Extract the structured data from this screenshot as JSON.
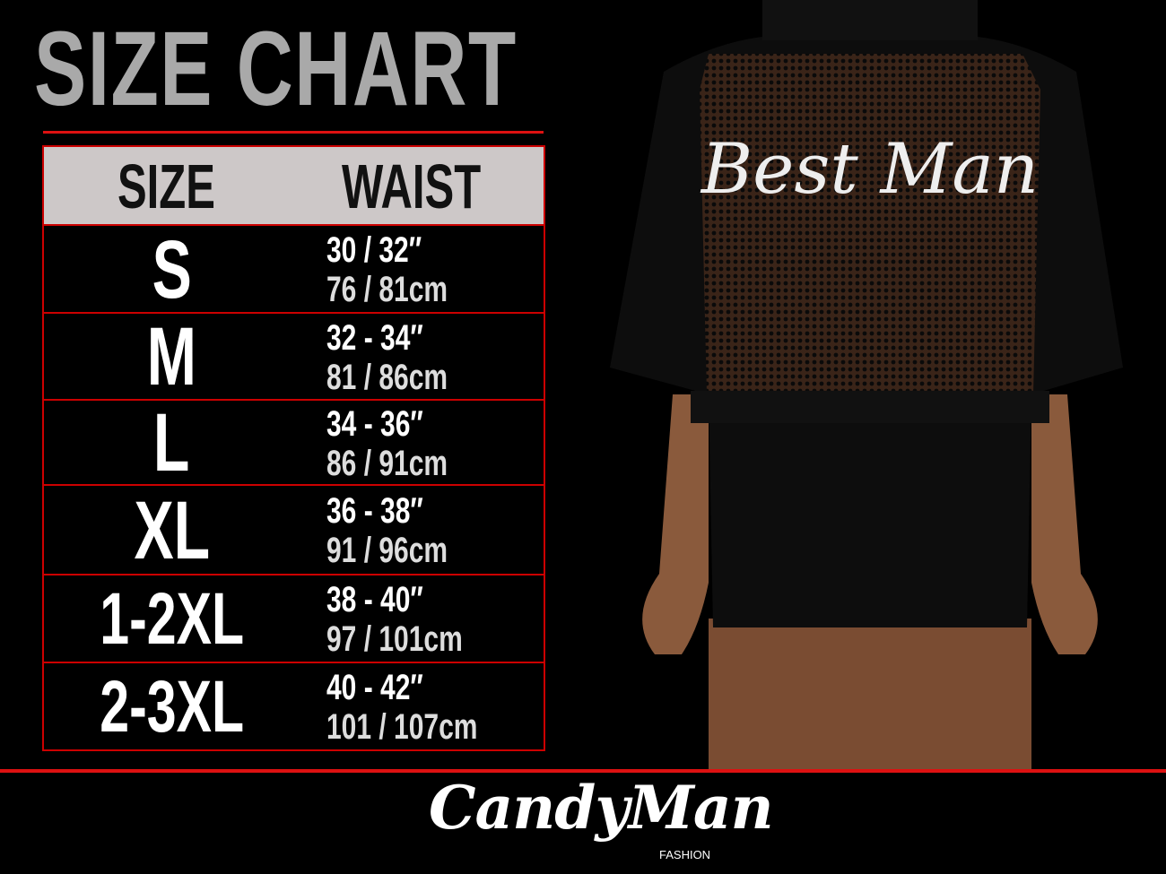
{
  "title": "SIZE CHART",
  "table": {
    "headers": [
      "SIZE",
      "WAIST"
    ],
    "rows": [
      {
        "size": "S",
        "inches": "30 / 32″",
        "cm": "76 / 81cm"
      },
      {
        "size": "M",
        "inches": "32 - 34″",
        "cm": "81 / 86cm"
      },
      {
        "size": "L",
        "inches": "34 - 36″",
        "cm": "86 / 91cm"
      },
      {
        "size": "XL",
        "inches": "36 - 38″",
        "cm": "91 / 96cm"
      },
      {
        "size": "1-2XL",
        "inches": "38 - 40″",
        "cm": "97 / 101cm"
      },
      {
        "size": "2-3XL",
        "inches": "40 - 42″",
        "cm": "101 / 107cm"
      }
    ]
  },
  "product_print": "Best Man",
  "brand": {
    "name": "CandyMan",
    "sub": "FASHION"
  },
  "colors": {
    "accent": "#d11111",
    "header_bg": "#cdc8c8",
    "title": "#a9a9a9"
  }
}
